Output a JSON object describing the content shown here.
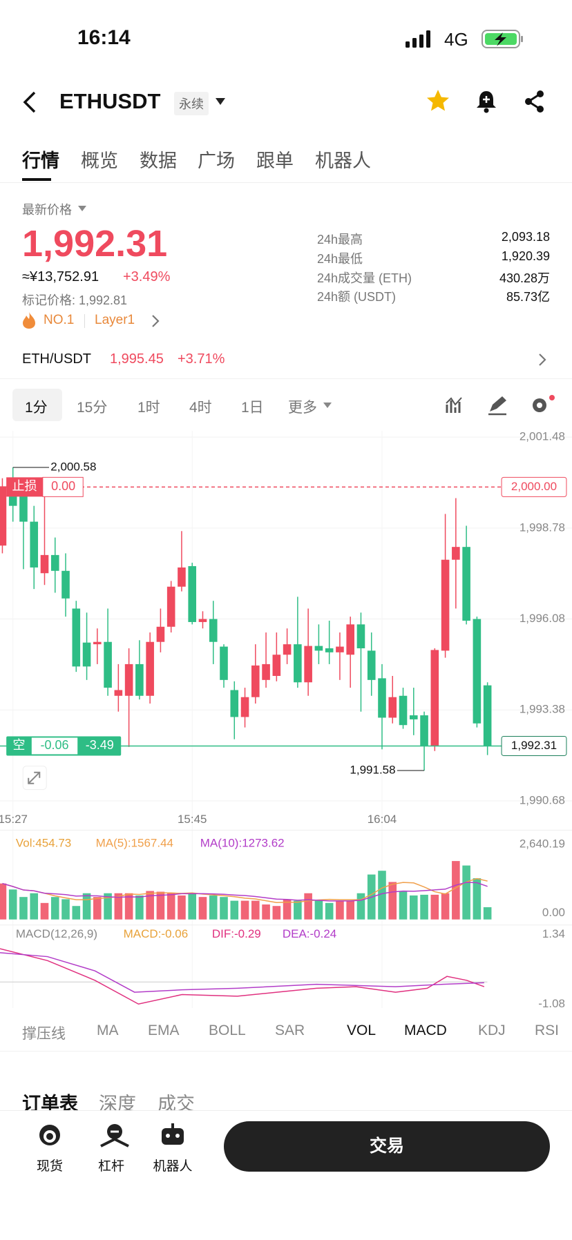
{
  "status": {
    "time": "16:14",
    "network": "4G"
  },
  "header": {
    "symbol": "ETHUSDT",
    "tag": "永续"
  },
  "tabs": [
    "行情",
    "概览",
    "数据",
    "广场",
    "跟单",
    "机器人"
  ],
  "price": {
    "label": "最新价格",
    "last": "1,992.31",
    "cny": "≈¥13,752.91",
    "change": "+3.49%",
    "mark": "标记价格: 1,992.81",
    "rank": "NO.1",
    "sector": "Layer1"
  },
  "stats": [
    {
      "label": "24h最高",
      "value": "2,093.18"
    },
    {
      "label": "24h最低",
      "value": "1,920.39"
    },
    {
      "label": "24h成交量 (ETH)",
      "value": "430.28万"
    },
    {
      "label": "24h额 (USDT)",
      "value": "85.73亿"
    }
  ],
  "spot": {
    "pair": "ETH/USDT",
    "price": "1,995.45",
    "change": "+3.71%"
  },
  "intervals": [
    "1分",
    "15分",
    "1时",
    "4时",
    "1日",
    "更多"
  ],
  "chart_data": {
    "type": "candlestick",
    "categories": [
      null,
      "15:27",
      null,
      null,
      null,
      null,
      null,
      null,
      null,
      null,
      null,
      null,
      null,
      null,
      null,
      null,
      null,
      null,
      "15:45",
      null,
      null,
      null,
      null,
      null,
      null,
      null,
      null,
      null,
      null,
      null,
      null,
      null,
      null,
      null,
      null,
      null,
      "16:04",
      null,
      null,
      null,
      null,
      null,
      null,
      null,
      null,
      null,
      null
    ],
    "open": [
      1998.26,
      2000.1,
      1999.72,
      1998.97,
      1997.44,
      1997.98,
      1997.51,
      1996.39,
      1995.38,
      1995.33,
      1995.4,
      1993.8,
      1993.8,
      1994.74,
      1993.8,
      1995.4,
      1995.85,
      1997.04,
      1997.65,
      1995.99,
      1996.08,
      1995.26,
      1993.97,
      1993.17,
      1993.76,
      1994.27,
      1994.39,
      1995.02,
      1995.33,
      1994.2,
      1995.28,
      1995.21,
      1995.09,
      1995.02,
      1995.92,
      1995.14,
      1994.32,
      1993.15,
      1993.8,
      1993.22,
      1993.22,
      1992.32,
      1995.14,
      1997.84,
      1998.22,
      1996.08,
      1994.11
    ],
    "close": [
      2000.02,
      1999.44,
      1998.97,
      1997.61,
      1997.98,
      1997.51,
      1996.69,
      1994.67,
      1994.67,
      1995.4,
      1994.04,
      1993.97,
      1994.74,
      1993.8,
      1995.4,
      1995.85,
      1997.04,
      1997.61,
      1995.99,
      1996.08,
      1995.4,
      1994.27,
      1993.17,
      1993.76,
      1994.7,
      1994.74,
      1995.02,
      1995.33,
      1994.2,
      1995.28,
      1995.14,
      1995.09,
      1995.26,
      1995.92,
      1995.21,
      1994.27,
      1993.15,
      1993.76,
      1992.93,
      1993.1,
      1992.32,
      1995.16,
      1997.84,
      1998.22,
      1996.03,
      1992.98,
      1992.31
    ],
    "high": [
      2000.26,
      2000.58,
      2000.26,
      1999.44,
      1999.91,
      1998.5,
      1998.03,
      1996.62,
      1996.27,
      1995.8,
      1996.39,
      1994.74,
      1995.21,
      1995.45,
      1995.68,
      1996.39,
      1997.21,
      1998.69,
      1997.75,
      1996.31,
      1996.62,
      1995.33,
      1994.23,
      1994.04,
      1995.33,
      1995.68,
      1995.68,
      1995.8,
      1996.74,
      1996.39,
      1995.92,
      1996.03,
      1995.68,
      1996.15,
      1996.27,
      1995.68,
      1994.74,
      1994.39,
      1994.04,
      1994.04,
      1993.33,
      1995.21,
      1999.2,
      1999.67,
      1998.85,
      1996.15,
      1994.2
    ],
    "low": [
      1998.03,
      1998.97,
      1997.56,
      1996.97,
      1997.09,
      1996.86,
      1996.15,
      1994.51,
      1994.27,
      1994.74,
      1993.8,
      1993.33,
      1992.28,
      1993.69,
      1993.57,
      1995.09,
      1995.68,
      1996.9,
      1995.92,
      1995.8,
      1994.74,
      1994.04,
      1992.51,
      1992.86,
      1993.57,
      1994.04,
      1994.23,
      1994.74,
      1994.04,
      1993.8,
      1994.74,
      1994.74,
      1994.27,
      1994.04,
      1993.33,
      1993.8,
      1992.21,
      1992.98,
      1992.82,
      1992.63,
      1991.58,
      1992.16,
      1994.93,
      1996.39,
      1995.92,
      1992.86,
      1992.04
    ],
    "up_color": "#ef4a5e",
    "down_color": "#2ebd85",
    "ylim": [
      1990.68,
      2001.48
    ],
    "yticks": [
      {
        "value": 2001.48,
        "label": "2,001.48"
      },
      {
        "value": 1998.78,
        "label": "1,998.78"
      },
      {
        "value": 1996.08,
        "label": "1,996.08"
      },
      {
        "value": 1993.38,
        "label": "1,993.38"
      },
      {
        "value": 1990.68,
        "label": "1,990.68"
      }
    ],
    "high_label": "2,000.58",
    "low_label": "1,991.58",
    "stop_loss": {
      "label": "止损",
      "pnl": "0.00",
      "price": {
        "value": 2000,
        "label": "2,000.00"
      }
    },
    "position": {
      "side": "空",
      "pnl": "-0.06",
      "pct": "-3.49"
    },
    "last_price": {
      "value": 1992.31,
      "label": "1,992.31"
    }
  },
  "volume": {
    "legend": [
      "Vol:454.73",
      "MA(5):1567.44",
      "MA(10):1273.62"
    ],
    "values": [
      1334,
      1112,
      834,
      973,
      612,
      834,
      751,
      500,
      973,
      834,
      973,
      973,
      973,
      890,
      1056,
      1029,
      973,
      890,
      973,
      834,
      890,
      834,
      695,
      695,
      695,
      556,
      500,
      751,
      695,
      973,
      695,
      612,
      695,
      695,
      973,
      1668,
      1807,
      1390,
      1029,
      890,
      917,
      917,
      973,
      2168,
      2002,
      1529,
      454.73
    ],
    "ylim": [
      0,
      2640.19
    ],
    "yticks": [
      {
        "value": 2640.19,
        "label": "2,640.19"
      },
      {
        "value": 0,
        "label": "0.00"
      }
    ]
  },
  "macd": {
    "legend": [
      "MACD(12,26,9)",
      "MACD:-0.06",
      "DIF:-0.29",
      "DEA:-0.24"
    ],
    "yticks": [
      1.34,
      -1.08
    ]
  },
  "indicators": [
    "撑压线",
    "MA",
    "EMA",
    "BOLL",
    "SAR",
    "VOL",
    "MACD",
    "KDJ",
    "RSI"
  ],
  "book_tabs": [
    "订单表",
    "深度",
    "成交"
  ],
  "bottom_nav": [
    "现货",
    "杠杆",
    "机器人"
  ],
  "trade": "交易"
}
